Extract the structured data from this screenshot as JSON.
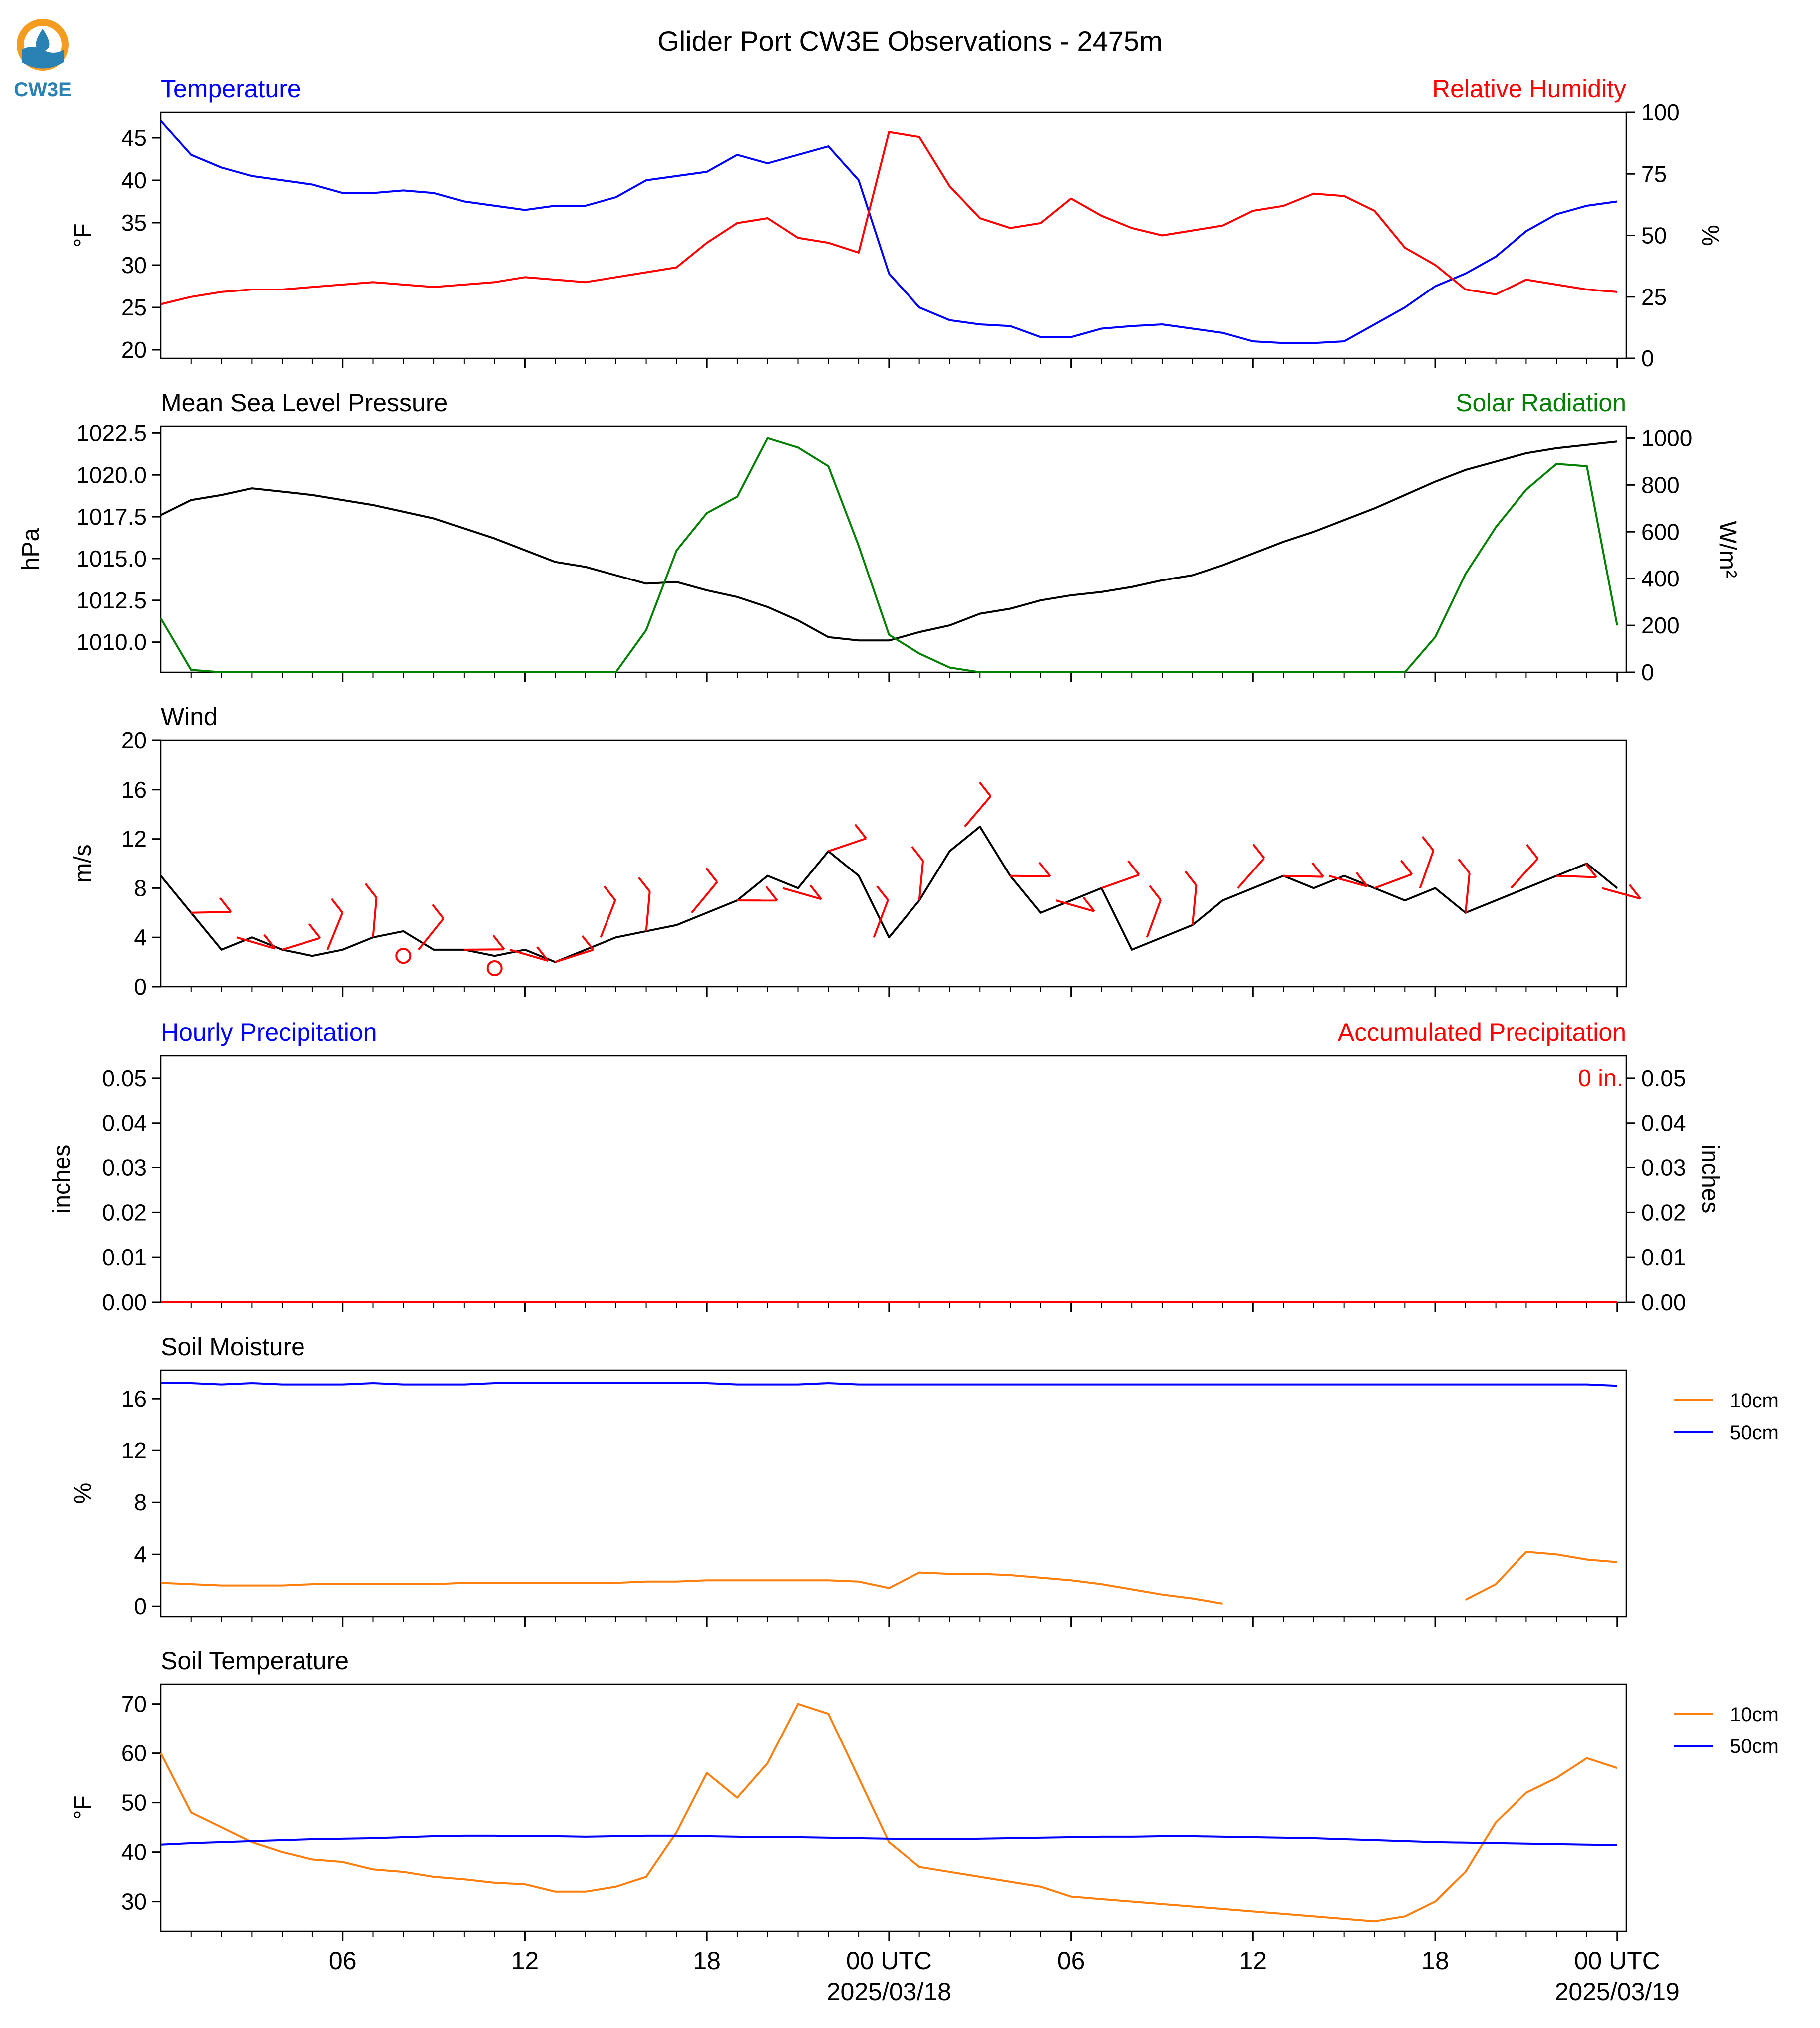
{
  "title": "Glider Port CW3E Observations - 2475m",
  "logo": {
    "text": "CW3E"
  },
  "colors": {
    "temp": "#0000ff",
    "rh": "#ff0000",
    "pressure": "#000000",
    "solar": "#008000",
    "wind": "#000000",
    "barb": "#ff0000",
    "soil10": "#ff7f0e",
    "soil50": "#0000ff"
  },
  "x_axis": {
    "hour_ticks": [
      "06",
      "12",
      "18",
      "00 UTC",
      "06",
      "12",
      "18",
      "00 UTC"
    ],
    "dates": [
      "2025/03/18",
      "2025/03/19"
    ]
  },
  "chart_data": [
    {
      "type": "line",
      "id": "temp_rh",
      "title_left": "Temperature",
      "title_right": "Relative Humidity",
      "ylabel_left": "°F",
      "ylabel_right": "%",
      "ylim_left": [
        19,
        48
      ],
      "ylim_right": [
        0,
        100
      ],
      "yticks_left": [
        "20",
        "25",
        "30",
        "35",
        "40",
        "45"
      ],
      "yticks_right": [
        "0",
        "25",
        "50",
        "75",
        "100"
      ],
      "x_hours": [
        0,
        1,
        2,
        3,
        4,
        5,
        6,
        7,
        8,
        9,
        10,
        11,
        12,
        13,
        14,
        15,
        16,
        17,
        18,
        19,
        20,
        21,
        22,
        23,
        24,
        25,
        26,
        27,
        28,
        29,
        30,
        31,
        32,
        33,
        34,
        35,
        36,
        37,
        38,
        39,
        40,
        41,
        42,
        43,
        44,
        45,
        46,
        47,
        48
      ],
      "series": [
        {
          "name": "Temperature",
          "axis": "left",
          "color": "#0000ff",
          "values": [
            47,
            43,
            41.5,
            40.5,
            40,
            39.5,
            38.5,
            38.5,
            38.8,
            38.5,
            37.5,
            37,
            36.5,
            37,
            37,
            38,
            40,
            40.5,
            41,
            43,
            42,
            43,
            44,
            40,
            29,
            25,
            23.5,
            23,
            22.8,
            21.5,
            21.5,
            22.5,
            22.8,
            23,
            22.5,
            22,
            21,
            20.8,
            20.8,
            21,
            23,
            25,
            27.5,
            29,
            31,
            34,
            36,
            37,
            37.5
          ]
        },
        {
          "name": "Relative Humidity",
          "axis": "right",
          "color": "#ff0000",
          "values": [
            22,
            25,
            27,
            28,
            28,
            29,
            30,
            31,
            30,
            29,
            30,
            31,
            33,
            32,
            31,
            33,
            35,
            37,
            47,
            55,
            57,
            49,
            47,
            43,
            92,
            90,
            70,
            57,
            53,
            55,
            65,
            58,
            53,
            50,
            52,
            54,
            60,
            62,
            67,
            66,
            60,
            45,
            38,
            28,
            26,
            32,
            30,
            28,
            27
          ]
        }
      ]
    },
    {
      "type": "line",
      "id": "pressure_solar",
      "title_left": "Mean Sea Level Pressure",
      "title_right": "Solar Radiation",
      "ylabel_left": "hPa",
      "ylabel_right": "W/m²",
      "ylim_left": [
        1008.2,
        1022.9
      ],
      "ylim_right": [
        0,
        1050
      ],
      "yticks_left": [
        "1010.0",
        "1012.5",
        "1015.0",
        "1017.5",
        "1020.0",
        "1022.5"
      ],
      "yticks_right": [
        "0",
        "200",
        "400",
        "600",
        "800",
        "1000"
      ],
      "x_hours": [
        0,
        1,
        2,
        3,
        4,
        5,
        6,
        7,
        8,
        9,
        10,
        11,
        12,
        13,
        14,
        15,
        16,
        17,
        18,
        19,
        20,
        21,
        22,
        23,
        24,
        25,
        26,
        27,
        28,
        29,
        30,
        31,
        32,
        33,
        34,
        35,
        36,
        37,
        38,
        39,
        40,
        41,
        42,
        43,
        44,
        45,
        46,
        47,
        48
      ],
      "series": [
        {
          "name": "Mean Sea Level Pressure",
          "axis": "left",
          "color": "#000000",
          "values": [
            1017.6,
            1018.5,
            1018.8,
            1019.2,
            1019.0,
            1018.8,
            1018.5,
            1018.2,
            1017.8,
            1017.4,
            1016.8,
            1016.2,
            1015.5,
            1014.8,
            1014.5,
            1014.0,
            1013.5,
            1013.6,
            1013.1,
            1012.7,
            1012.1,
            1011.3,
            1010.3,
            1010.1,
            1010.1,
            1010.6,
            1011.0,
            1011.7,
            1012.0,
            1012.5,
            1012.8,
            1013.0,
            1013.3,
            1013.7,
            1014.0,
            1014.6,
            1015.3,
            1016.0,
            1016.6,
            1017.3,
            1018.0,
            1018.8,
            1019.6,
            1020.3,
            1020.8,
            1021.3,
            1021.6,
            1021.8,
            1022.0
          ]
        },
        {
          "name": "Solar Radiation",
          "axis": "right",
          "color": "#008000",
          "values": [
            230,
            10,
            0,
            0,
            0,
            0,
            0,
            0,
            0,
            0,
            0,
            0,
            0,
            0,
            0,
            0,
            180,
            520,
            680,
            750,
            1000,
            960,
            880,
            540,
            160,
            80,
            20,
            0,
            0,
            0,
            0,
            0,
            0,
            0,
            0,
            0,
            0,
            0,
            0,
            0,
            0,
            0,
            150,
            420,
            620,
            780,
            890,
            880,
            200
          ]
        }
      ]
    },
    {
      "type": "line",
      "id": "wind",
      "title_left": "Wind",
      "ylabel_left": "m/s",
      "ylim": [
        0,
        20
      ],
      "yticks_left": [
        "0",
        "4",
        "8",
        "12",
        "16",
        "20"
      ],
      "x_hours": [
        0,
        1,
        2,
        3,
        4,
        5,
        6,
        7,
        8,
        9,
        10,
        11,
        12,
        13,
        14,
        15,
        16,
        17,
        18,
        19,
        20,
        21,
        22,
        23,
        24,
        25,
        26,
        27,
        28,
        29,
        30,
        31,
        32,
        33,
        34,
        35,
        36,
        37,
        38,
        39,
        40,
        41,
        42,
        43,
        44,
        45,
        46,
        47,
        48
      ],
      "series": [
        {
          "name": "Wind speed",
          "color": "#000000",
          "values": [
            9,
            6,
            3,
            4,
            3,
            2.5,
            3,
            4,
            4.5,
            3,
            3,
            2.5,
            3,
            2,
            3,
            4,
            4.5,
            5,
            6,
            7,
            9,
            8,
            11,
            9,
            4,
            7,
            11,
            13,
            9,
            6,
            7,
            8,
            3,
            4,
            5,
            7,
            8,
            9,
            8,
            9,
            8,
            7,
            8,
            6,
            7,
            8,
            9,
            10,
            8
          ]
        },
        {
          "name": "Wind barbs",
          "color": "#ff0000",
          "values": []
        }
      ]
    },
    {
      "type": "line",
      "id": "precip",
      "title_left": "Hourly Precipitation",
      "title_right": "Accumulated Precipitation",
      "ylabel_left": "inches",
      "ylabel_right": "inches",
      "ylim": [
        0,
        0.055
      ],
      "yticks_left": [
        "0.00",
        "0.01",
        "0.02",
        "0.03",
        "0.04",
        "0.05"
      ],
      "yticks_right": [
        "0.00",
        "0.01",
        "0.02",
        "0.03",
        "0.04",
        "0.05"
      ],
      "annotation": "0 in.",
      "x_hours": [
        0,
        48
      ],
      "series": [
        {
          "name": "Hourly Precipitation",
          "axis": "left",
          "color": "#0000ff",
          "values": [
            0,
            0
          ]
        },
        {
          "name": "Accumulated Precipitation",
          "axis": "right",
          "color": "#ff0000",
          "values": [
            0,
            0
          ]
        }
      ]
    },
    {
      "type": "line",
      "id": "soil_moisture",
      "title_left": "Soil Moisture",
      "ylabel_left": "%",
      "ylim": [
        -0.8,
        18.2
      ],
      "yticks_left": [
        "0",
        "4",
        "8",
        "12",
        "16"
      ],
      "legend": [
        "10cm",
        "50cm"
      ],
      "x_hours": [
        0,
        1,
        2,
        3,
        4,
        5,
        6,
        7,
        8,
        9,
        10,
        11,
        12,
        13,
        14,
        15,
        16,
        17,
        18,
        19,
        20,
        21,
        22,
        23,
        24,
        25,
        26,
        27,
        28,
        29,
        30,
        31,
        32,
        33,
        34,
        35,
        36,
        37,
        38,
        39,
        40,
        41,
        42,
        43,
        44,
        45,
        46,
        47,
        48
      ],
      "series": [
        {
          "name": "10cm",
          "color": "#ff7f0e",
          "values": [
            1.8,
            1.7,
            1.6,
            1.6,
            1.6,
            1.7,
            1.7,
            1.7,
            1.7,
            1.7,
            1.8,
            1.8,
            1.8,
            1.8,
            1.8,
            1.8,
            1.9,
            1.9,
            2.0,
            2.0,
            2.0,
            2.0,
            2.0,
            1.9,
            1.4,
            2.6,
            2.5,
            2.5,
            2.4,
            2.2,
            2.0,
            1.7,
            1.3,
            0.9,
            0.6,
            0.2,
            null,
            null,
            null,
            null,
            null,
            null,
            null,
            0.5,
            1.7,
            4.2,
            4.0,
            3.6,
            3.4
          ]
        },
        {
          "name": "50cm",
          "color": "#0000ff",
          "values": [
            17.2,
            17.2,
            17.1,
            17.2,
            17.1,
            17.1,
            17.1,
            17.2,
            17.1,
            17.1,
            17.1,
            17.2,
            17.2,
            17.2,
            17.2,
            17.2,
            17.2,
            17.2,
            17.2,
            17.1,
            17.1,
            17.1,
            17.2,
            17.1,
            17.1,
            17.1,
            17.1,
            17.1,
            17.1,
            17.1,
            17.1,
            17.1,
            17.1,
            17.1,
            17.1,
            17.1,
            17.1,
            17.1,
            17.1,
            17.1,
            17.1,
            17.1,
            17.1,
            17.1,
            17.1,
            17.1,
            17.1,
            17.1,
            17.0
          ]
        }
      ]
    },
    {
      "type": "line",
      "id": "soil_temperature",
      "title_left": "Soil Temperature",
      "ylabel_left": "°F",
      "ylim": [
        24,
        74
      ],
      "yticks_left": [
        "30",
        "40",
        "50",
        "60",
        "70"
      ],
      "legend": [
        "10cm",
        "50cm"
      ],
      "x_hours": [
        0,
        1,
        2,
        3,
        4,
        5,
        6,
        7,
        8,
        9,
        10,
        11,
        12,
        13,
        14,
        15,
        16,
        17,
        18,
        19,
        20,
        21,
        22,
        23,
        24,
        25,
        26,
        27,
        28,
        29,
        30,
        31,
        32,
        33,
        34,
        35,
        36,
        37,
        38,
        39,
        40,
        41,
        42,
        43,
        44,
        45,
        46,
        47,
        48
      ],
      "series": [
        {
          "name": "10cm",
          "color": "#ff7f0e",
          "values": [
            60,
            48,
            45,
            42,
            40,
            38.5,
            38,
            36.5,
            36,
            35,
            34.5,
            33.8,
            33.5,
            32,
            32,
            33,
            35,
            44,
            56,
            51,
            58,
            70,
            68,
            55,
            42,
            37,
            36,
            35,
            34,
            33,
            31,
            30.5,
            30,
            29.5,
            29,
            28.5,
            28,
            27.5,
            27,
            26.5,
            26,
            27,
            30,
            36,
            46,
            52,
            55,
            59,
            57
          ]
        },
        {
          "name": "50cm",
          "color": "#0000ff",
          "values": [
            41.5,
            41.8,
            42,
            42.2,
            42.4,
            42.6,
            42.7,
            42.8,
            43,
            43.2,
            43.3,
            43.3,
            43.2,
            43.2,
            43.1,
            43.2,
            43.3,
            43.3,
            43.2,
            43.1,
            43,
            43,
            42.9,
            42.8,
            42.7,
            42.6,
            42.6,
            42.7,
            42.8,
            42.9,
            43,
            43.1,
            43.1,
            43.2,
            43.2,
            43.1,
            43,
            42.9,
            42.8,
            42.6,
            42.4,
            42.2,
            42,
            41.9,
            41.8,
            41.7,
            41.6,
            41.5,
            41.4
          ]
        }
      ]
    }
  ]
}
